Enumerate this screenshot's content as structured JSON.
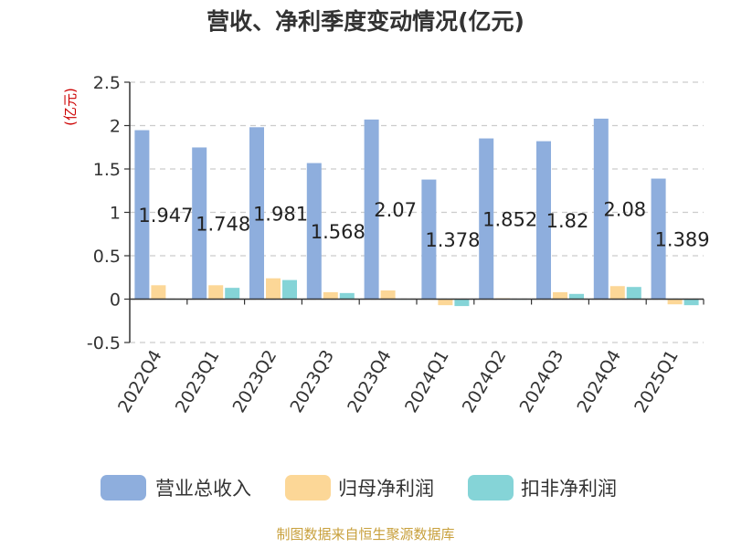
{
  "chart_data": {
    "type": "bar",
    "title": "营收、净利季度变动情况(亿元)",
    "y_unit": "(亿元)",
    "ylim": [
      -0.5,
      2.5
    ],
    "yticks": [
      "-0.5",
      "0",
      "0.5",
      "1",
      "1.5",
      "2",
      "2.5"
    ],
    "grid": true,
    "legend_position": "bottom",
    "categories": [
      "2022Q4",
      "2023Q1",
      "2023Q2",
      "2023Q3",
      "2023Q4",
      "2024Q1",
      "2024Q2",
      "2024Q3",
      "2024Q4",
      "2025Q1"
    ],
    "series": [
      {
        "name": "营业总收入",
        "color": "#8eaedd",
        "values": [
          1.947,
          1.748,
          1.981,
          1.568,
          2.07,
          1.378,
          1.852,
          1.82,
          2.08,
          1.389
        ]
      },
      {
        "name": "归母净利润",
        "color": "#fcd797",
        "values": [
          0.16,
          0.16,
          0.24,
          0.08,
          0.1,
          -0.07,
          0.01,
          0.08,
          0.15,
          -0.06
        ]
      },
      {
        "name": "扣非净利润",
        "color": "#85d4d7",
        "values": [
          0.0,
          0.13,
          0.22,
          0.07,
          0.0,
          -0.08,
          0.0,
          0.06,
          0.14,
          -0.07
        ]
      }
    ],
    "data_labels": [
      "1.947",
      "1.748",
      "1.981",
      "1.568",
      "2.07",
      "1.378",
      "1.852",
      "1.82",
      "2.08",
      "1.389"
    ]
  },
  "source": "制图数据来自恒生聚源数据库"
}
